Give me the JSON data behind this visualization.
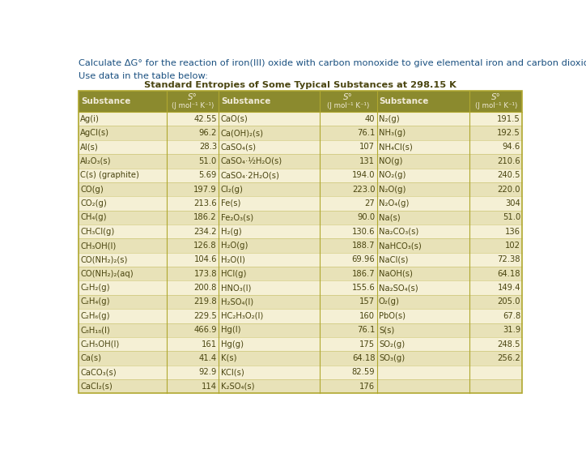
{
  "title_text": "Calculate ΔG° for the reaction of iron(III) oxide with carbon monoxide to give elemental iron and carbon dioxide.",
  "subtitle_text": "Use data in the table below:",
  "table_title": "Standard Entropies of Some Typical Substances at 298.15 K",
  "col1": [
    [
      "Ag(i)",
      "42.55"
    ],
    [
      "AgCl(s)",
      "96.2"
    ],
    [
      "Al(s)",
      "28.3"
    ],
    [
      "Al₂O₃(s)",
      "51.0"
    ],
    [
      "C(s) (graphite)",
      "5.69"
    ],
    [
      "CO(g)",
      "197.9"
    ],
    [
      "CO₂(g)",
      "213.6"
    ],
    [
      "CH₄(g)",
      "186.2"
    ],
    [
      "CH₃Cl(g)",
      "234.2"
    ],
    [
      "CH₃OH(l)",
      "126.8"
    ],
    [
      "CO(NH₂)₂(s)",
      "104.6"
    ],
    [
      "CO(NH₂)₂(aq)",
      "173.8"
    ],
    [
      "C₂H₂(g)",
      "200.8"
    ],
    [
      "C₂H₄(g)",
      "219.8"
    ],
    [
      "C₂H₆(g)",
      "229.5"
    ],
    [
      "C₈H₁₈(l)",
      "466.9"
    ],
    [
      "C₂H₅OH(l)",
      "161"
    ],
    [
      "Ca(s)",
      "41.4"
    ],
    [
      "CaCO₃(s)",
      "92.9"
    ],
    [
      "CaCl₂(s)",
      "114"
    ]
  ],
  "col2": [
    [
      "CaO(s)",
      "40"
    ],
    [
      "Ca(OH)₂(s)",
      "76.1"
    ],
    [
      "CaSO₄(s)",
      "107"
    ],
    [
      "CaSO₄·½H₂O(s)",
      "131"
    ],
    [
      "CaSO₄·2H₂O(s)",
      "194.0"
    ],
    [
      "Cl₂(g)",
      "223.0"
    ],
    [
      "Fe(s)",
      "27"
    ],
    [
      "Fe₂O₃(s)",
      "90.0"
    ],
    [
      "H₂(g)",
      "130.6"
    ],
    [
      "H₂O(g)",
      "188.7"
    ],
    [
      "H₂O(l)",
      "69.96"
    ],
    [
      "HCl(g)",
      "186.7"
    ],
    [
      "HNO₃(l)",
      "155.6"
    ],
    [
      "H₂SO₄(l)",
      "157"
    ],
    [
      "HC₂H₃O₂(l)",
      "160"
    ],
    [
      "Hg(l)",
      "76.1"
    ],
    [
      "Hg(g)",
      "175"
    ],
    [
      "K(s)",
      "64.18"
    ],
    [
      "KCl(s)",
      "82.59"
    ],
    [
      "K₂SO₄(s)",
      "176"
    ]
  ],
  "col3": [
    [
      "N₂(g)",
      "191.5"
    ],
    [
      "NH₃(g)",
      "192.5"
    ],
    [
      "NH₄Cl(s)",
      "94.6"
    ],
    [
      "NO(g)",
      "210.6"
    ],
    [
      "NO₂(g)",
      "240.5"
    ],
    [
      "N₂O(g)",
      "220.0"
    ],
    [
      "N₂O₄(g)",
      "304"
    ],
    [
      "Na(s)",
      "51.0"
    ],
    [
      "Na₂CO₃(s)",
      "136"
    ],
    [
      "NaHCO₃(s)",
      "102"
    ],
    [
      "NaCl(s)",
      "72.38"
    ],
    [
      "NaOH(s)",
      "64.18"
    ],
    [
      "Na₂SO₄(s)",
      "149.4"
    ],
    [
      "O₂(g)",
      "205.0"
    ],
    [
      "PbO(s)",
      "67.8"
    ],
    [
      "S(s)",
      "31.9"
    ],
    [
      "SO₂(g)",
      "248.5"
    ],
    [
      "SO₃(g)",
      "256.2"
    ],
    [
      "",
      ""
    ],
    [
      "",
      ""
    ]
  ],
  "bg_color": "#f5f0d5",
  "header_bg": "#8b8a2e",
  "header_text_color": "#f0ead8",
  "text_color": "#4a4510",
  "title_color": "#1a5080",
  "subtitle_color": "#1a5080",
  "border_color": "#b0a830",
  "row_alt_bg": "#e8e2b8",
  "row_normal_bg": "#f5f0d5"
}
